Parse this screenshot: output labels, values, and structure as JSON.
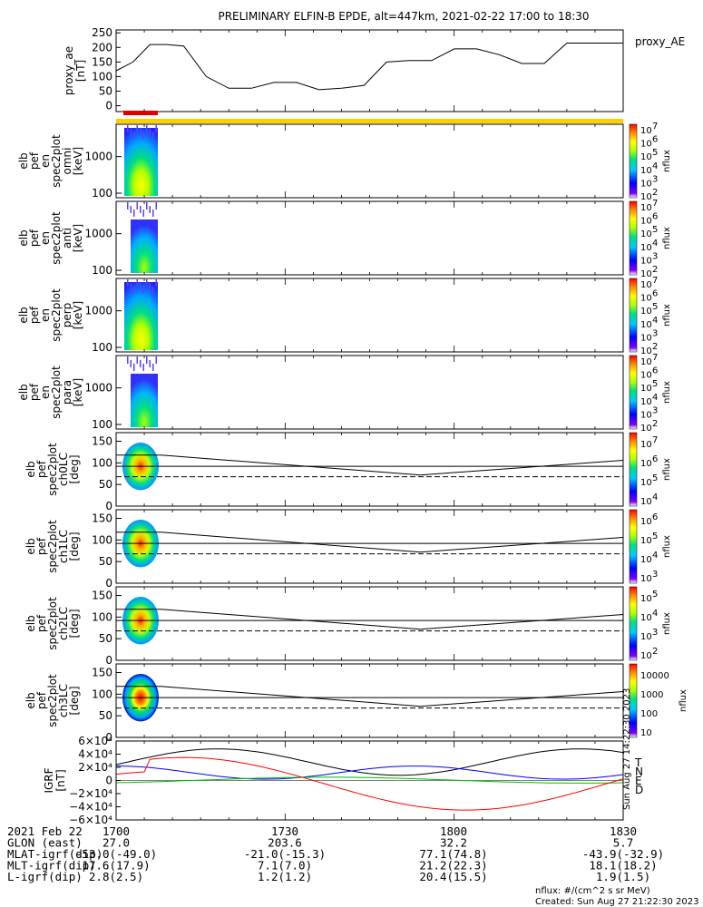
{
  "title": "PRELIMINARY ELFIN-B EPDE, alt=447km, 2021-02-22 17:00 to 18:30",
  "colors": {
    "gold": "#ffd000",
    "red_bar": "#e00000",
    "mlat": "#000000",
    "flux_cmap": [
      "#ffffff",
      "#7f00ff",
      "#0000ff",
      "#00c8ff",
      "#00e080",
      "#b0ff00",
      "#ffff00",
      "#ff9000",
      "#ff0000"
    ]
  },
  "chart_data": [
    {
      "type": "line",
      "panel": "proxy_ae",
      "ylabel": "proxy_ae\n[nT]",
      "legend": "proxy_AE",
      "ylim": [
        -20,
        260
      ],
      "yticks": [
        "250",
        "200",
        "150",
        "100",
        "50",
        "0"
      ],
      "x": [
        0,
        3,
        6,
        9,
        12,
        16,
        20,
        24,
        28,
        32,
        36,
        40,
        44,
        48,
        52,
        56,
        60,
        64,
        68,
        72,
        76,
        80,
        84,
        88,
        90
      ],
      "values": [
        120,
        150,
        210,
        210,
        205,
        100,
        60,
        60,
        80,
        80,
        55,
        60,
        70,
        150,
        155,
        155,
        195,
        195,
        175,
        145,
        145,
        215,
        215,
        215,
        215
      ]
    },
    {
      "type": "heatmap",
      "panel": "omni",
      "ylabel": "elb\npef\nen\nspec2plot\nomni\n[keV]",
      "yticks": [
        "1000",
        "100"
      ],
      "colorbar": {
        "label": "nflux",
        "ticks": [
          "10",
          "10",
          "10",
          "10",
          "10",
          "10"
        ],
        "exps": [
          "7",
          "6",
          "5",
          "4",
          "3",
          "2"
        ]
      }
    },
    {
      "type": "heatmap",
      "panel": "anti",
      "ylabel": "elb\npef\nen\nspec2plot\nanti\n[keV]",
      "yticks": [
        "1000",
        "100"
      ],
      "colorbar": {
        "label": "nflux",
        "ticks": [
          "10",
          "10",
          "10",
          "10",
          "10",
          "10"
        ],
        "exps": [
          "7",
          "6",
          "5",
          "4",
          "3",
          "2"
        ]
      }
    },
    {
      "type": "heatmap",
      "panel": "perp",
      "ylabel": "elb\npef\nen\nspec2plot\nperp\n[keV]",
      "yticks": [
        "1000",
        "100"
      ],
      "colorbar": {
        "label": "nflux",
        "ticks": [
          "10",
          "10",
          "10",
          "10",
          "10",
          "10"
        ],
        "exps": [
          "7",
          "6",
          "5",
          "4",
          "3",
          "2"
        ]
      }
    },
    {
      "type": "heatmap",
      "panel": "para",
      "ylabel": "elb\npef\nen\nspec2plot\npara\n[keV]",
      "yticks": [
        "1000",
        "100"
      ],
      "colorbar": {
        "label": "nflux",
        "ticks": [
          "10",
          "10",
          "10",
          "10",
          "10",
          "10"
        ],
        "exps": [
          "7",
          "6",
          "5",
          "4",
          "3",
          "2"
        ]
      }
    },
    {
      "type": "heatmap",
      "panel": "ch0LC",
      "ylabel": "elb\npef\nspec2plot\nch0LC\n[deg]",
      "yticks": [
        "150",
        "100",
        "50",
        "0"
      ],
      "colorbar": {
        "label": "nflux",
        "ticks": [
          "10",
          "10",
          "10",
          "10"
        ],
        "exps": [
          "7",
          "6",
          "5",
          "4"
        ]
      }
    },
    {
      "type": "heatmap",
      "panel": "ch1LC",
      "ylabel": "elb\npef\nspec2plot\nch1LC\n[deg]",
      "yticks": [
        "150",
        "100",
        "50",
        "0"
      ],
      "colorbar": {
        "label": "nflux",
        "ticks": [
          "10",
          "10",
          "10",
          "10"
        ],
        "exps": [
          "6",
          "5",
          "4",
          "3"
        ]
      }
    },
    {
      "type": "heatmap",
      "panel": "ch2LC",
      "ylabel": "elb\npef\nspec2plot\nch2LC\n[deg]",
      "yticks": [
        "150",
        "100",
        "50",
        "0"
      ],
      "colorbar": {
        "label": "nflux",
        "ticks": [
          "10",
          "10",
          "10",
          "10"
        ],
        "exps": [
          "5",
          "4",
          "3",
          "2"
        ]
      }
    },
    {
      "type": "heatmap",
      "panel": "ch3LC",
      "ylabel": "elb\npef\nspec2plot\nch3LC\n[deg]",
      "yticks": [
        "150",
        "100",
        "50",
        "0"
      ],
      "colorbar": {
        "label": "nflux",
        "ticks": [
          "10000",
          "1000",
          "100",
          "10"
        ]
      }
    },
    {
      "type": "line",
      "panel": "IGRF",
      "ylabel": "IGRF\n[nT]",
      "yticks": [
        "6×10⁴",
        "4×10⁴",
        "2×10⁴",
        "0",
        "−2×10⁴",
        "−4×10⁴",
        "−6×10⁴"
      ],
      "legend": [
        "T",
        "N",
        "E",
        "D"
      ],
      "legend_colors": [
        "#000000",
        "#0000ff",
        "#00c000",
        "#ff0000"
      ],
      "ylim": [
        -60000,
        60000
      ]
    }
  ],
  "xaxis": {
    "tick_labels": [
      "1700",
      "1730",
      "1800",
      "1830"
    ],
    "rows": [
      {
        "label": "2021 Feb 22",
        "values": [
          "1700",
          "1730",
          "1800",
          "1830"
        ]
      },
      {
        "label": "GLON (east)",
        "values": [
          "27.0",
          "203.6",
          "32.2",
          "5.7"
        ]
      },
      {
        "label": "MLAT-igrf(dip)",
        "values": [
          "-53.0(-49.0)",
          "-21.0(-15.3)",
          "77.1(74.8)",
          "-43.9(-32.9)"
        ]
      },
      {
        "label": "MLT-igrf(dip)",
        "values": [
          "17.6(17.9)",
          "7.1(7.0)",
          "21.2(22.3)",
          "18.1(18.2)"
        ]
      },
      {
        "label": "L-igrf(dip)",
        "values": [
          "2.8(2.5)",
          "1.2(1.2)",
          "20.4(15.5)",
          "1.9(1.5)"
        ]
      }
    ]
  },
  "footer": {
    "units": "nflux: #/(cm^2 s sr MeV)",
    "created": "Created: Sun Aug 27 21:22:30 2023",
    "side_stamp": "Sun Aug 27 14:22:30 2023"
  }
}
